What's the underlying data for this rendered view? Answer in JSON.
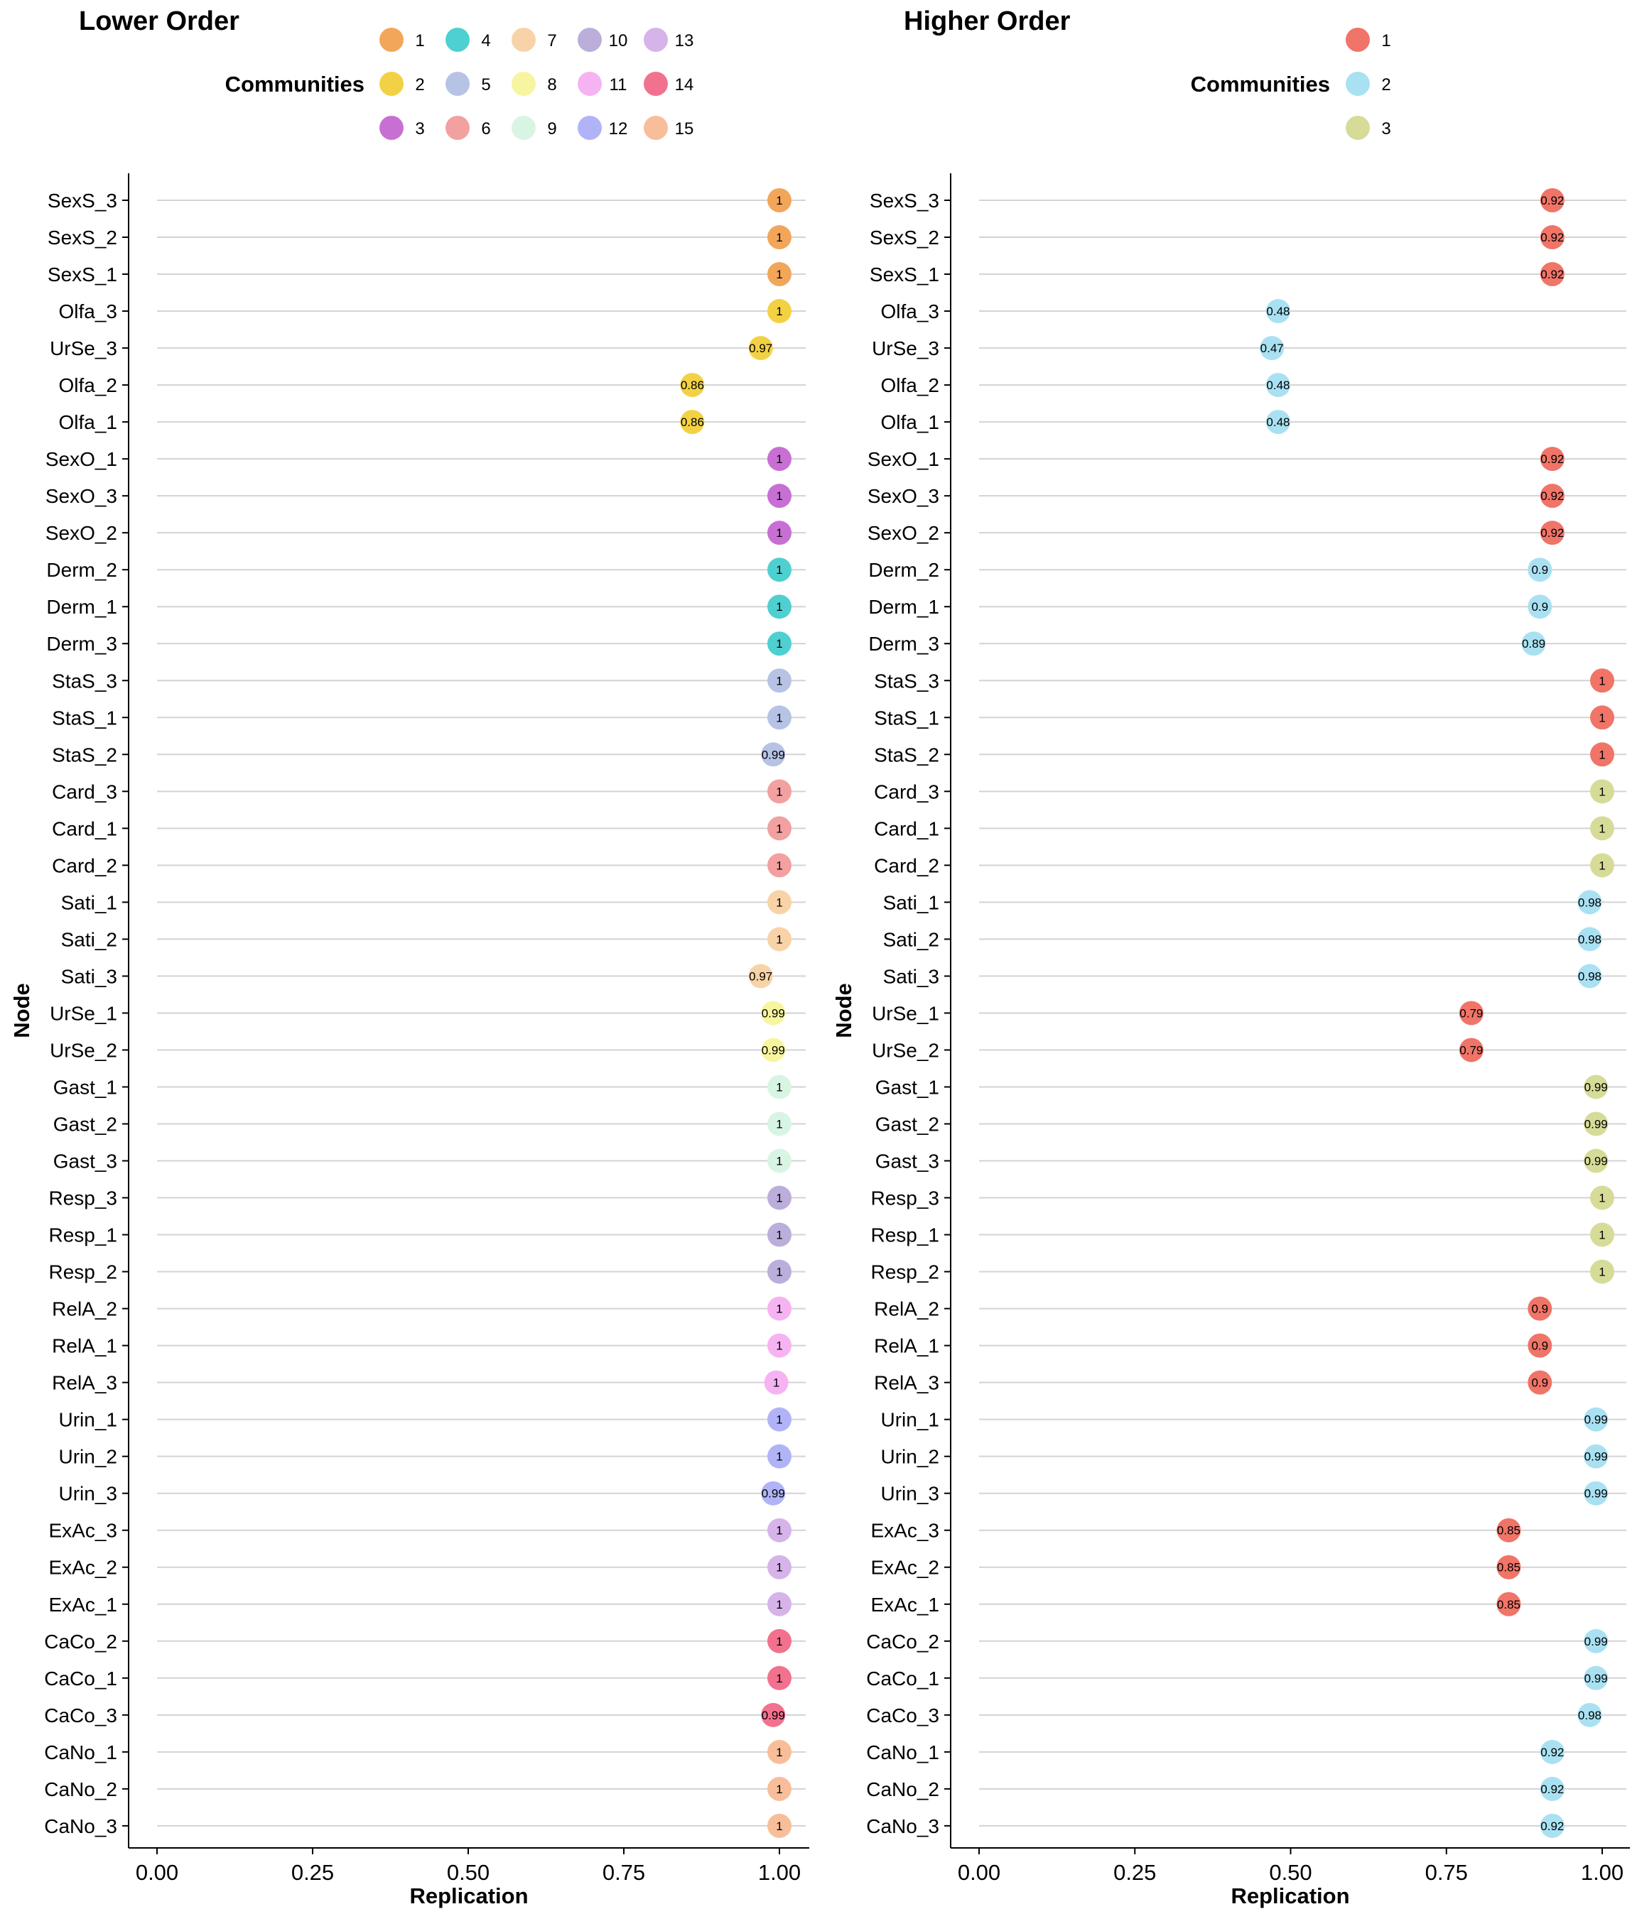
{
  "chart_data": [
    {
      "type": "dot",
      "title": "Lower Order",
      "xlabel": "Replication",
      "ylabel": "Node",
      "xlim": [
        0,
        1
      ],
      "xticks": [
        "0.00",
        "0.25",
        "0.50",
        "0.75",
        "1.00"
      ],
      "grid": "horizontal lines per node",
      "legend": {
        "title": "Communities",
        "placement": "top",
        "entries": [
          {
            "label": "1",
            "color": "#F2A65A"
          },
          {
            "label": "2",
            "color": "#F2D244"
          },
          {
            "label": "3",
            "color": "#C86FD4"
          },
          {
            "label": "4",
            "color": "#4FD0D0"
          },
          {
            "label": "5",
            "color": "#B7C3E5"
          },
          {
            "label": "6",
            "color": "#F2A0A0"
          },
          {
            "label": "7",
            "color": "#F8D3A8"
          },
          {
            "label": "8",
            "color": "#F8F5A0"
          },
          {
            "label": "9",
            "color": "#D8F5E3"
          },
          {
            "label": "10",
            "color": "#BBAEDB"
          },
          {
            "label": "11",
            "color": "#F6B3F2"
          },
          {
            "label": "12",
            "color": "#B0B4F7"
          },
          {
            "label": "13",
            "color": "#D6B4EA"
          },
          {
            "label": "14",
            "color": "#F2718E"
          },
          {
            "label": "15",
            "color": "#F8BE9A"
          }
        ]
      },
      "points": [
        {
          "node": "SexS_3",
          "value": 1,
          "label": "1",
          "community": 1
        },
        {
          "node": "SexS_2",
          "value": 1,
          "label": "1",
          "community": 1
        },
        {
          "node": "SexS_1",
          "value": 1,
          "label": "1",
          "community": 1
        },
        {
          "node": "Olfa_3",
          "value": 1,
          "label": "1",
          "community": 2
        },
        {
          "node": "UrSe_3",
          "value": 0.97,
          "label": "0.97",
          "community": 2
        },
        {
          "node": "Olfa_2",
          "value": 0.86,
          "label": "0.86",
          "community": 2
        },
        {
          "node": "Olfa_1",
          "value": 0.86,
          "label": "0.86",
          "community": 2
        },
        {
          "node": "SexO_1",
          "value": 1,
          "label": "1",
          "community": 3
        },
        {
          "node": "SexO_3",
          "value": 1,
          "label": "1",
          "community": 3
        },
        {
          "node": "SexO_2",
          "value": 1,
          "label": "1",
          "community": 3
        },
        {
          "node": "Derm_2",
          "value": 1,
          "label": "1",
          "community": 4
        },
        {
          "node": "Derm_1",
          "value": 1,
          "label": "1",
          "community": 4
        },
        {
          "node": "Derm_3",
          "value": 1,
          "label": "1",
          "community": 4
        },
        {
          "node": "StaS_3",
          "value": 1,
          "label": "1",
          "community": 5
        },
        {
          "node": "StaS_1",
          "value": 1,
          "label": "1",
          "community": 5
        },
        {
          "node": "StaS_2",
          "value": 0.99,
          "label": "0.99",
          "community": 5
        },
        {
          "node": "Card_3",
          "value": 1,
          "label": "1",
          "community": 6
        },
        {
          "node": "Card_1",
          "value": 1,
          "label": "1",
          "community": 6
        },
        {
          "node": "Card_2",
          "value": 1,
          "label": "1",
          "community": 6
        },
        {
          "node": "Sati_1",
          "value": 1,
          "label": "1",
          "community": 7
        },
        {
          "node": "Sati_2",
          "value": 1,
          "label": "1",
          "community": 7
        },
        {
          "node": "Sati_3",
          "value": 0.97,
          "label": "0.97",
          "community": 7
        },
        {
          "node": "UrSe_1",
          "value": 0.99,
          "label": "0.99",
          "community": 8
        },
        {
          "node": "UrSe_2",
          "value": 0.99,
          "label": "0.99",
          "community": 8
        },
        {
          "node": "Gast_1",
          "value": 1,
          "label": "1",
          "community": 9
        },
        {
          "node": "Gast_2",
          "value": 1,
          "label": "1",
          "community": 9
        },
        {
          "node": "Gast_3",
          "value": 1,
          "label": "1",
          "community": 9
        },
        {
          "node": "Resp_3",
          "value": 1,
          "label": "1",
          "community": 10
        },
        {
          "node": "Resp_1",
          "value": 1,
          "label": "1",
          "community": 10
        },
        {
          "node": "Resp_2",
          "value": 1,
          "label": "1",
          "community": 10
        },
        {
          "node": "RelA_2",
          "value": 1,
          "label": "1",
          "community": 11
        },
        {
          "node": "RelA_1",
          "value": 1,
          "label": "1",
          "community": 11
        },
        {
          "node": "RelA_3",
          "value": 0.995,
          "label": "1",
          "community": 11
        },
        {
          "node": "Urin_1",
          "value": 1,
          "label": "1",
          "community": 12
        },
        {
          "node": "Urin_2",
          "value": 1,
          "label": "1",
          "community": 12
        },
        {
          "node": "Urin_3",
          "value": 0.99,
          "label": "0.99",
          "community": 12
        },
        {
          "node": "ExAc_3",
          "value": 1,
          "label": "1",
          "community": 13
        },
        {
          "node": "ExAc_2",
          "value": 1,
          "label": "1",
          "community": 13
        },
        {
          "node": "ExAc_1",
          "value": 1,
          "label": "1",
          "community": 13
        },
        {
          "node": "CaCo_2",
          "value": 1,
          "label": "1",
          "community": 14
        },
        {
          "node": "CaCo_1",
          "value": 1,
          "label": "1",
          "community": 14
        },
        {
          "node": "CaCo_3",
          "value": 0.99,
          "label": "0.99",
          "community": 14
        },
        {
          "node": "CaNo_1",
          "value": 1,
          "label": "1",
          "community": 15
        },
        {
          "node": "CaNo_2",
          "value": 1,
          "label": "1",
          "community": 15
        },
        {
          "node": "CaNo_3",
          "value": 1,
          "label": "1",
          "community": 15
        }
      ]
    },
    {
      "type": "dot",
      "title": "Higher Order",
      "xlabel": "Replication",
      "ylabel": "Node",
      "xlim": [
        0,
        1
      ],
      "xticks": [
        "0.00",
        "0.25",
        "0.50",
        "0.75",
        "1.00"
      ],
      "grid": "horizontal lines per node",
      "legend": {
        "title": "Communities",
        "placement": "top",
        "entries": [
          {
            "label": "1",
            "color": "#F07468"
          },
          {
            "label": "2",
            "color": "#A9E1F2"
          },
          {
            "label": "3",
            "color": "#D6DC98"
          }
        ]
      },
      "points": [
        {
          "node": "SexS_3",
          "value": 0.92,
          "label": "0.92",
          "community": 1
        },
        {
          "node": "SexS_2",
          "value": 0.92,
          "label": "0.92",
          "community": 1
        },
        {
          "node": "SexS_1",
          "value": 0.92,
          "label": "0.92",
          "community": 1
        },
        {
          "node": "Olfa_3",
          "value": 0.48,
          "label": "0.48",
          "community": 2
        },
        {
          "node": "UrSe_3",
          "value": 0.47,
          "label": "0.47",
          "community": 2
        },
        {
          "node": "Olfa_2",
          "value": 0.48,
          "label": "0.48",
          "community": 2
        },
        {
          "node": "Olfa_1",
          "value": 0.48,
          "label": "0.48",
          "community": 2
        },
        {
          "node": "SexO_1",
          "value": 0.92,
          "label": "0.92",
          "community": 1
        },
        {
          "node": "SexO_3",
          "value": 0.92,
          "label": "0.92",
          "community": 1
        },
        {
          "node": "SexO_2",
          "value": 0.92,
          "label": "0.92",
          "community": 1
        },
        {
          "node": "Derm_2",
          "value": 0.9,
          "label": "0.9",
          "community": 2
        },
        {
          "node": "Derm_1",
          "value": 0.9,
          "label": "0.9",
          "community": 2
        },
        {
          "node": "Derm_3",
          "value": 0.89,
          "label": "0.89",
          "community": 2
        },
        {
          "node": "StaS_3",
          "value": 1,
          "label": "1",
          "community": 1
        },
        {
          "node": "StaS_1",
          "value": 1,
          "label": "1",
          "community": 1
        },
        {
          "node": "StaS_2",
          "value": 1,
          "label": "1",
          "community": 1
        },
        {
          "node": "Card_3",
          "value": 1,
          "label": "1",
          "community": 3
        },
        {
          "node": "Card_1",
          "value": 1,
          "label": "1",
          "community": 3
        },
        {
          "node": "Card_2",
          "value": 1,
          "label": "1",
          "community": 3
        },
        {
          "node": "Sati_1",
          "value": 0.98,
          "label": "0.98",
          "community": 2
        },
        {
          "node": "Sati_2",
          "value": 0.98,
          "label": "0.98",
          "community": 2
        },
        {
          "node": "Sati_3",
          "value": 0.98,
          "label": "0.98",
          "community": 2
        },
        {
          "node": "UrSe_1",
          "value": 0.79,
          "label": "0.79",
          "community": 1
        },
        {
          "node": "UrSe_2",
          "value": 0.79,
          "label": "0.79",
          "community": 1
        },
        {
          "node": "Gast_1",
          "value": 0.99,
          "label": "0.99",
          "community": 3
        },
        {
          "node": "Gast_2",
          "value": 0.99,
          "label": "0.99",
          "community": 3
        },
        {
          "node": "Gast_3",
          "value": 0.99,
          "label": "0.99",
          "community": 3
        },
        {
          "node": "Resp_3",
          "value": 1,
          "label": "1",
          "community": 3
        },
        {
          "node": "Resp_1",
          "value": 1,
          "label": "1",
          "community": 3
        },
        {
          "node": "Resp_2",
          "value": 1,
          "label": "1",
          "community": 3
        },
        {
          "node": "RelA_2",
          "value": 0.9,
          "label": "0.9",
          "community": 1
        },
        {
          "node": "RelA_1",
          "value": 0.9,
          "label": "0.9",
          "community": 1
        },
        {
          "node": "RelA_3",
          "value": 0.9,
          "label": "0.9",
          "community": 1
        },
        {
          "node": "Urin_1",
          "value": 0.99,
          "label": "0.99",
          "community": 2
        },
        {
          "node": "Urin_2",
          "value": 0.99,
          "label": "0.99",
          "community": 2
        },
        {
          "node": "Urin_3",
          "value": 0.99,
          "label": "0.99",
          "community": 2
        },
        {
          "node": "ExAc_3",
          "value": 0.85,
          "label": "0.85",
          "community": 1
        },
        {
          "node": "ExAc_2",
          "value": 0.85,
          "label": "0.85",
          "community": 1
        },
        {
          "node": "ExAc_1",
          "value": 0.85,
          "label": "0.85",
          "community": 1
        },
        {
          "node": "CaCo_2",
          "value": 0.99,
          "label": "0.99",
          "community": 2
        },
        {
          "node": "CaCo_1",
          "value": 0.99,
          "label": "0.99",
          "community": 2
        },
        {
          "node": "CaCo_3",
          "value": 0.98,
          "label": "0.98",
          "community": 2
        },
        {
          "node": "CaNo_1",
          "value": 0.92,
          "label": "0.92",
          "community": 2
        },
        {
          "node": "CaNo_2",
          "value": 0.92,
          "label": "0.92",
          "community": 2
        },
        {
          "node": "CaNo_3",
          "value": 0.92,
          "label": "0.92",
          "community": 2
        }
      ]
    }
  ]
}
